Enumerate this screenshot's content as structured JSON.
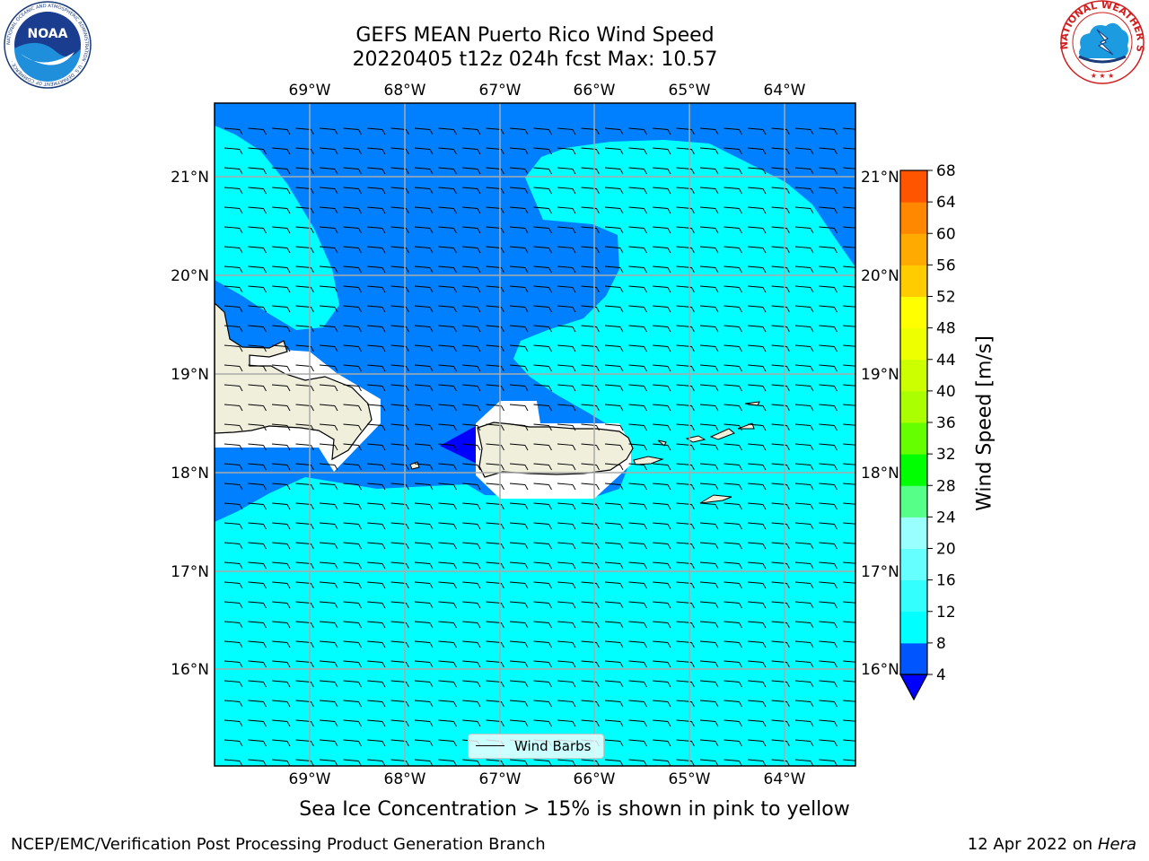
{
  "header": {
    "title_line1": "GEFS MEAN Puerto Rico Wind Speed",
    "title_line2": "20220405 t12z 024h fcst   Max: 10.57"
  },
  "map": {
    "lon_labels": [
      "69°W",
      "68°W",
      "67°W",
      "66°W",
      "65°W",
      "64°W"
    ],
    "lat_labels": [
      "21°N",
      "20°N",
      "19°N",
      "18°N",
      "17°N",
      "16°N"
    ],
    "legend_label": "Wind Barbs",
    "sea_ice_note": "Sea Ice Concentration > 15% is shown in pink to yellow"
  },
  "colorbar": {
    "title": "Wind Speed [m/s]",
    "ticks": [
      "68",
      "64",
      "60",
      "56",
      "52",
      "48",
      "44",
      "40",
      "36",
      "32",
      "28",
      "24",
      "20",
      "16",
      "12",
      "8",
      "4"
    ],
    "colors_low_to_high": [
      "#0055ff",
      "#00ffff",
      "#33ffff",
      "#66ffff",
      "#99ffff",
      "#55ff88",
      "#00ff00",
      "#66ff00",
      "#aaff00",
      "#ccff00",
      "#eeff00",
      "#ffff00",
      "#ffcc00",
      "#ffaa00",
      "#ff8800",
      "#ff5500",
      "#ff2200",
      "#ff0000"
    ],
    "under_color": "#0000ff"
  },
  "footer": {
    "left": "NCEP/EMC/Verification Post Processing Product Generation Branch",
    "right_date": "12 Apr 2022 on",
    "right_host": "Hera"
  },
  "logos": {
    "left": "NOAA",
    "left_ring": "NATIONAL OCEANIC AND ATMOSPHERIC ADMINISTRATION · U.S. DEPARTMENT OF COMMERCE ·",
    "right_ring": "NATIONAL WEATHER SERVICE"
  }
}
